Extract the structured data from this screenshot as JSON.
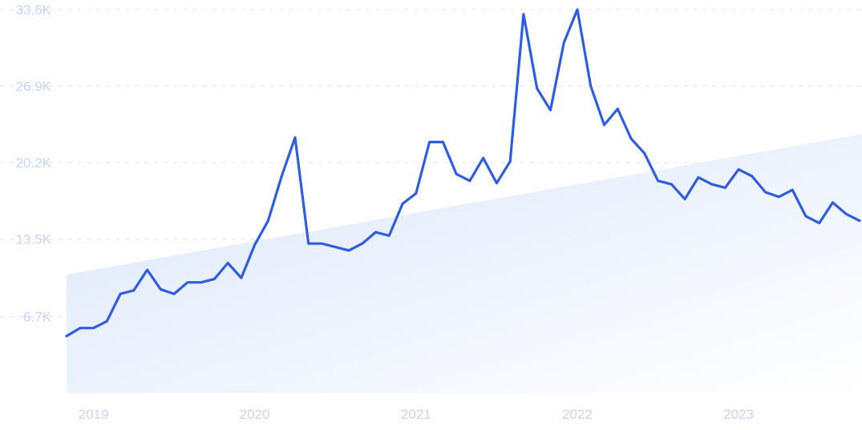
{
  "chart_data": {
    "type": "line",
    "title": "",
    "xlabel": "",
    "ylabel": "",
    "x_tick_labels": [
      "2019",
      "2020",
      "2021",
      "2022",
      "2023"
    ],
    "y_tick_labels": [
      "6.7K",
      "13.5K",
      "20.2K",
      "26.9K",
      "33.6K"
    ],
    "y_ticks": [
      6700,
      13500,
      20200,
      26900,
      33600
    ],
    "ylim": [
      0,
      33600
    ],
    "xlim": [
      "2018-11",
      "2023-10"
    ],
    "grid": true,
    "trend_band": {
      "start": 10400,
      "end": 22700
    },
    "series": [
      {
        "color": "#2f5ddf",
        "x": [
          "2018-11",
          "2018-12",
          "2019-01",
          "2019-02",
          "2019-03",
          "2019-04",
          "2019-05",
          "2019-06",
          "2019-07",
          "2019-08",
          "2019-09",
          "2019-10",
          "2019-11",
          "2019-12",
          "2020-01",
          "2020-02",
          "2020-03",
          "2020-04",
          "2020-05",
          "2020-06",
          "2020-07",
          "2020-08",
          "2020-09",
          "2020-10",
          "2020-11",
          "2020-12",
          "2021-01",
          "2021-02",
          "2021-03",
          "2021-04",
          "2021-05",
          "2021-06",
          "2021-07",
          "2021-08",
          "2021-09",
          "2021-10",
          "2021-11",
          "2021-12",
          "2022-01",
          "2022-02",
          "2022-03",
          "2022-04",
          "2022-05",
          "2022-06",
          "2022-07",
          "2022-08",
          "2022-09",
          "2022-10",
          "2022-11",
          "2022-12",
          "2023-01",
          "2023-02",
          "2023-03",
          "2023-04",
          "2023-05",
          "2023-06",
          "2023-07",
          "2023-08",
          "2023-09",
          "2023-10"
        ],
        "values": [
          5000,
          5700,
          5700,
          6300,
          8700,
          9000,
          10800,
          9100,
          8700,
          9700,
          9700,
          10000,
          11400,
          10100,
          13000,
          15100,
          19000,
          22400,
          13100,
          13100,
          12800,
          12500,
          13100,
          14100,
          13800,
          16600,
          17500,
          22000,
          22000,
          19200,
          18600,
          20600,
          18400,
          20300,
          33200,
          26700,
          24800,
          30700,
          33600,
          26900,
          23500,
          24900,
          22300,
          21000,
          18600,
          18300,
          17000,
          18900,
          18300,
          18000,
          19600,
          19000,
          17600,
          17200,
          17800,
          15500,
          14900,
          16700,
          15700,
          15100
        ]
      }
    ]
  }
}
